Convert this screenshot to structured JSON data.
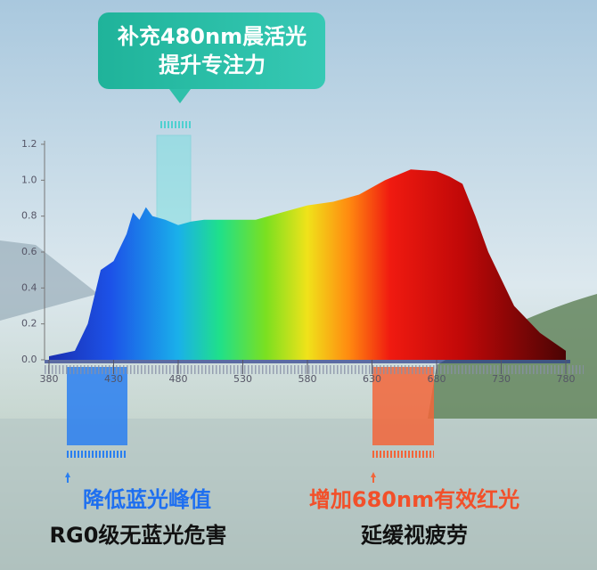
{
  "chart_data": {
    "type": "area",
    "x": [
      380,
      400,
      410,
      420,
      430,
      440,
      445,
      450,
      455,
      460,
      470,
      480,
      490,
      500,
      520,
      540,
      560,
      580,
      600,
      620,
      640,
      660,
      680,
      690,
      700,
      710,
      720,
      730,
      740,
      760,
      780
    ],
    "values": [
      0.02,
      0.05,
      0.2,
      0.5,
      0.55,
      0.7,
      0.82,
      0.78,
      0.85,
      0.8,
      0.78,
      0.75,
      0.77,
      0.78,
      0.78,
      0.78,
      0.82,
      0.86,
      0.88,
      0.92,
      1.0,
      1.06,
      1.05,
      1.02,
      0.98,
      0.8,
      0.6,
      0.45,
      0.3,
      0.15,
      0.05
    ],
    "xlim": [
      380,
      780
    ],
    "xticks": [
      380,
      430,
      480,
      530,
      580,
      630,
      680,
      730,
      780
    ],
    "ylim": [
      0,
      1.2
    ],
    "yticks": [
      {
        "value": 0,
        "label": "0.0"
      },
      0.2,
      0.4,
      0.6,
      0.8,
      {
        "value": 1,
        "label": "1.0"
      },
      1.2
    ],
    "annotations": [
      "补充480nm晨活光",
      "提升专注力",
      "降低蓝光峰值",
      "RG0级无蓝光危害",
      "增加680nm有效红光",
      "延缓视疲劳"
    ]
  }
}
